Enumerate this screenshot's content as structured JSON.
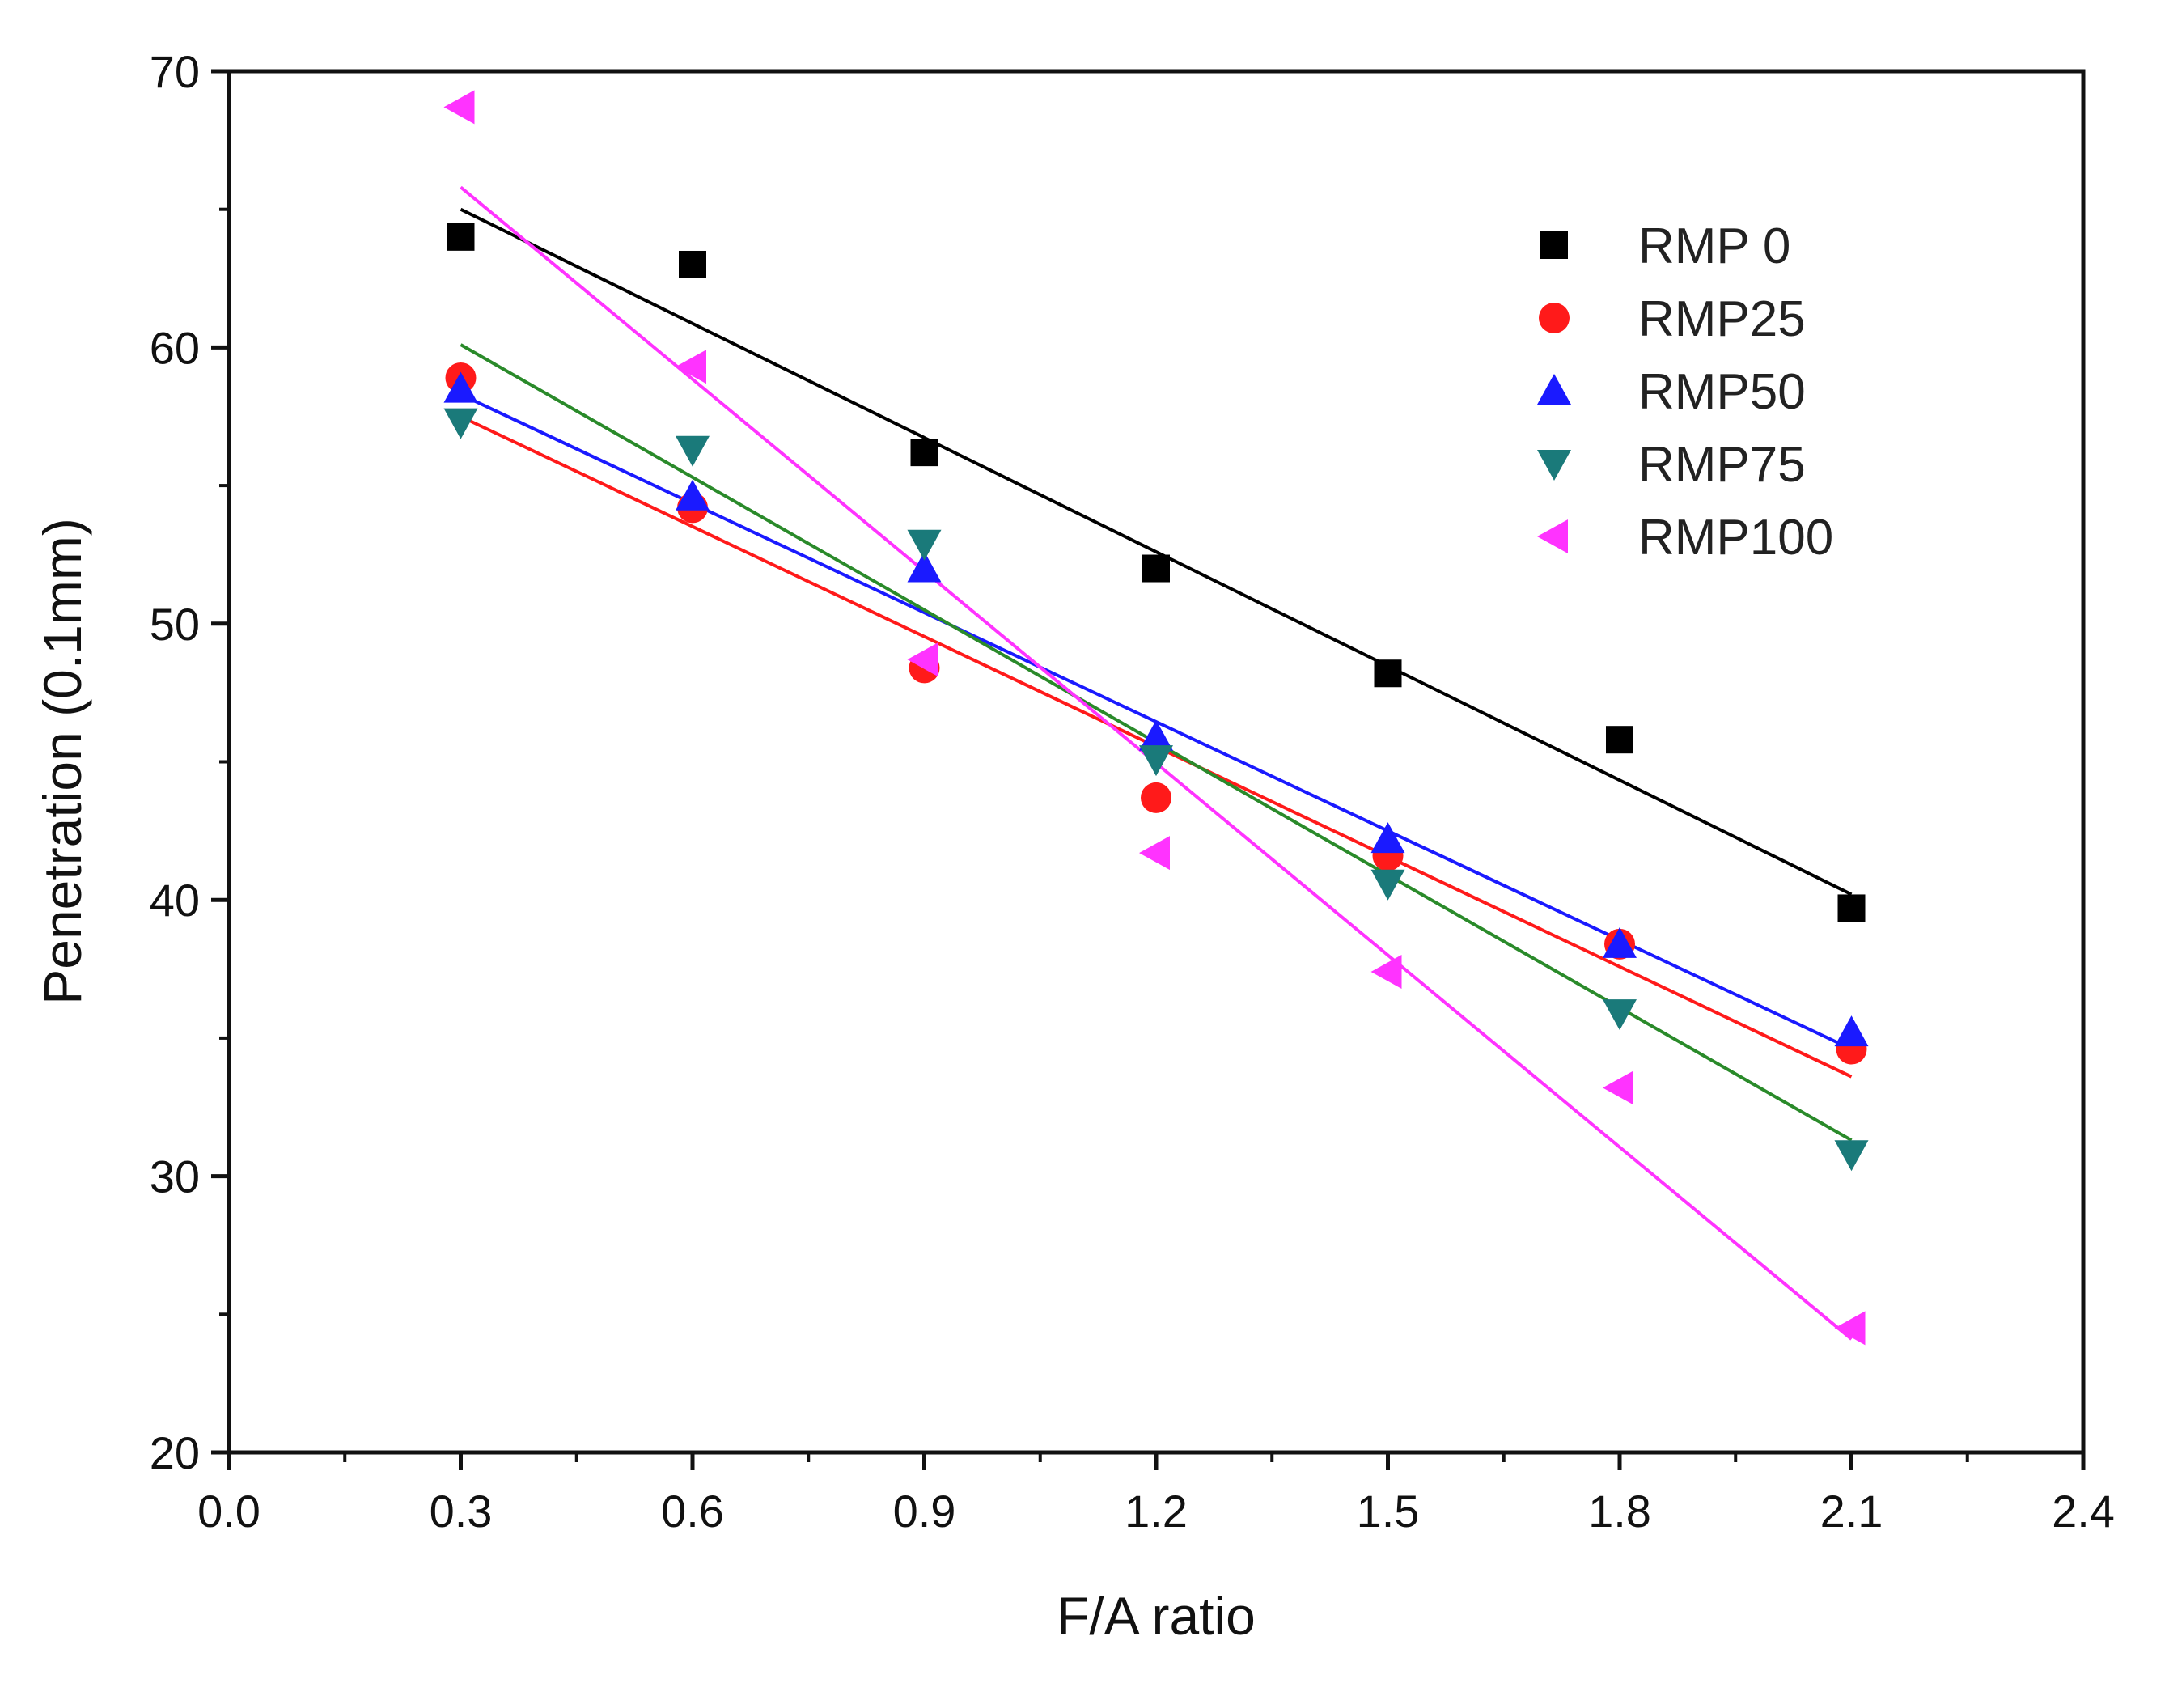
{
  "chart_data": {
    "type": "scatter",
    "title": "",
    "xlabel": "F/A ratio",
    "ylabel": "Penetration (0.1mm)",
    "xlim": [
      0.0,
      2.4
    ],
    "ylim": [
      20,
      70
    ],
    "xticks": [
      0.0,
      0.3,
      0.6,
      0.9,
      1.2,
      1.5,
      1.8,
      2.1,
      2.4
    ],
    "xtick_labels": [
      "0.0",
      "0.3",
      "0.6",
      "0.9",
      "1.2",
      "1.5",
      "1.8",
      "2.1",
      "2.4"
    ],
    "yticks": [
      20,
      30,
      40,
      50,
      60,
      70
    ],
    "ytick_labels": [
      "20",
      "30",
      "40",
      "50",
      "60",
      "70"
    ],
    "grid": false,
    "legend_position": "top-right",
    "x": [
      0.3,
      0.6,
      0.9,
      1.2,
      1.5,
      1.8,
      2.1
    ],
    "series": [
      {
        "name": "RMP 0",
        "marker": "square",
        "color": "#000000",
        "values": [
          64.0,
          63.0,
          56.2,
          52.0,
          48.2,
          45.8,
          39.7
        ],
        "fit_line": [
          65.0,
          40.2
        ]
      },
      {
        "name": "RMP25",
        "marker": "circle",
        "color": "#ff1a1a",
        "values": [
          58.9,
          54.2,
          48.4,
          43.7,
          41.6,
          38.4,
          34.6
        ],
        "fit_line": [
          57.5,
          33.6
        ]
      },
      {
        "name": "RMP50",
        "marker": "triangle-up",
        "color": "#1a1aff",
        "values": [
          58.5,
          54.6,
          52.0,
          45.9,
          42.2,
          38.4,
          35.2
        ],
        "fit_line": [
          58.3,
          34.6
        ]
      },
      {
        "name": "RMP75",
        "marker": "triangle-down",
        "color": "#1a7a7a",
        "values": [
          57.3,
          56.3,
          52.9,
          45.1,
          40.6,
          35.9,
          30.8
        ],
        "fit_line": [
          60.1,
          31.3
        ]
      },
      {
        "name": "RMP100",
        "marker": "triangle-left",
        "color": "#ff33ff",
        "values": [
          68.7,
          59.3,
          48.7,
          41.7,
          37.4,
          33.2,
          24.5
        ],
        "fit_line": [
          65.8,
          24.1
        ]
      }
    ],
    "fit_line_colors": [
      "#000000",
      "#ff1a1a",
      "#1a1aff",
      "#2a8a2a",
      "#ff33ff"
    ]
  }
}
